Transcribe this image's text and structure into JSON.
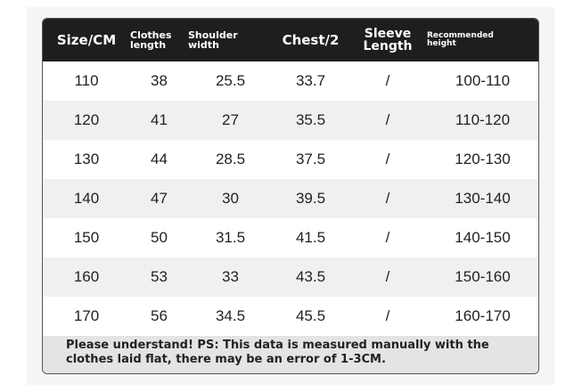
{
  "table": {
    "header": [
      "Size/CM",
      "Clothes\nlength",
      "Shoulder\nwidth",
      "Chest/2",
      "Sleeve\nLength",
      "Recommended\nheight"
    ],
    "rows": [
      [
        "110",
        "38",
        "25.5",
        "33.7",
        "/",
        "100-110"
      ],
      [
        "120",
        "41",
        "27",
        "35.5",
        "/",
        "110-120"
      ],
      [
        "130",
        "44",
        "28.5",
        "37.5",
        "/",
        "120-130"
      ],
      [
        "140",
        "47",
        "30",
        "39.5",
        "/",
        "130-140"
      ],
      [
        "150",
        "50",
        "31.5",
        "41.5",
        "/",
        "140-150"
      ],
      [
        "160",
        "53",
        "33",
        "43.5",
        "/",
        "150-160"
      ],
      [
        "170",
        "56",
        "34.5",
        "45.5",
        "/",
        "160-170"
      ]
    ],
    "note": "Please understand! PS: This data is measured manually with the clothes laid flat, there may be an error of 1-3CM."
  }
}
